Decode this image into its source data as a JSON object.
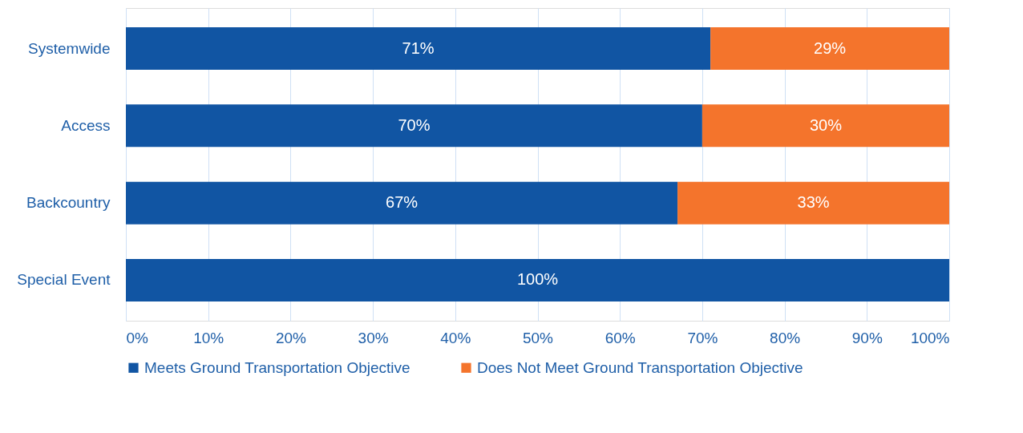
{
  "chart_data": {
    "type": "bar",
    "orientation": "horizontal",
    "stacked": true,
    "categories": [
      "Systemwide",
      "Access",
      "Backcountry",
      "Special Event"
    ],
    "series": [
      {
        "name": "Meets Ground Transportation Objective",
        "color": "#1155a3",
        "values": [
          71,
          70,
          67,
          100
        ],
        "value_labels": [
          "71%",
          "70%",
          "67%",
          "100%"
        ]
      },
      {
        "name": "Does Not Meet Ground Transportation Objective",
        "color": "#f4742c",
        "values": [
          29,
          30,
          33,
          null
        ],
        "value_labels": [
          "29%",
          "30%",
          "33%",
          null
        ]
      }
    ],
    "xlim": [
      0,
      100
    ],
    "xticks": [
      {
        "value": 0,
        "label": "0%"
      },
      {
        "value": 10,
        "label": "10%"
      },
      {
        "value": 20,
        "label": "20%"
      },
      {
        "value": 30,
        "label": "30%"
      },
      {
        "value": 40,
        "label": "40%"
      },
      {
        "value": 50,
        "label": "50%"
      },
      {
        "value": 60,
        "label": "60%"
      },
      {
        "value": 70,
        "label": "70%"
      },
      {
        "value": 80,
        "label": "80%"
      },
      {
        "value": 90,
        "label": "90%"
      },
      {
        "value": 100,
        "label": "100%"
      }
    ],
    "grid": "x",
    "legend": "bottom"
  }
}
